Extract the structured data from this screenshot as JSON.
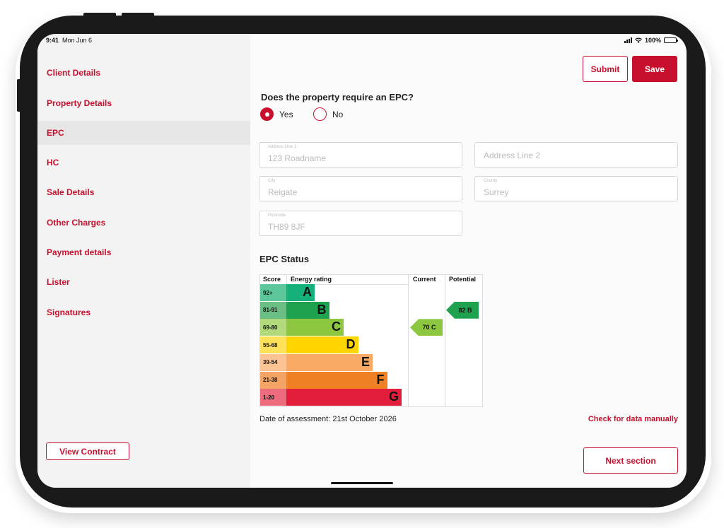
{
  "status_bar": {
    "time": "9:41",
    "date": "Mon Jun 6",
    "battery": "100%"
  },
  "sidebar": {
    "items": [
      {
        "label": "Client Details",
        "active": false
      },
      {
        "label": "Property Details",
        "active": false
      },
      {
        "label": "EPC",
        "active": true
      },
      {
        "label": "HC",
        "active": false
      },
      {
        "label": "Sale Details",
        "active": false
      },
      {
        "label": "Other Charges",
        "active": false
      },
      {
        "label": "Payment details",
        "active": false
      },
      {
        "label": "Lister",
        "active": false
      },
      {
        "label": "Signatures",
        "active": false
      }
    ],
    "view_contract_label": "View Contract"
  },
  "header": {
    "submit_label": "Submit",
    "save_label": "Save"
  },
  "epc_question": {
    "text": "Does the property require an EPC?",
    "options": [
      {
        "label": "Yes",
        "selected": true
      },
      {
        "label": "No",
        "selected": false
      }
    ]
  },
  "address": {
    "line1": {
      "label": "Address Line 1",
      "value": "123 Roadname"
    },
    "line2": {
      "placeholder": "Address Line 2"
    },
    "city": {
      "label": "City",
      "value": "Reigate"
    },
    "county": {
      "label": "County",
      "value": "Surrey"
    },
    "postcode": {
      "label": "Postcode",
      "value": "TH89 8JF"
    }
  },
  "epc_status": {
    "title": "EPC Status",
    "headers": {
      "score": "Score",
      "energy_rating": "Energy rating",
      "current": "Current",
      "potential": "Potential"
    },
    "bands": [
      {
        "score": "92+",
        "letter": "A",
        "color": "#16b07a",
        "score_bg": "#5dc79c"
      },
      {
        "score": "81-91",
        "letter": "B",
        "color": "#1ea24f",
        "score_bg": "#6bbf84"
      },
      {
        "score": "69-80",
        "letter": "C",
        "color": "#8dc63f",
        "score_bg": "#b2d97c"
      },
      {
        "score": "55-68",
        "letter": "D",
        "color": "#ffd500",
        "score_bg": "#ffe25a"
      },
      {
        "score": "39-54",
        "letter": "E",
        "color": "#fbaa65",
        "score_bg": "#fcc494"
      },
      {
        "score": "21-38",
        "letter": "F",
        "color": "#ef8023",
        "score_bg": "#f4a565"
      },
      {
        "score": "1-20",
        "letter": "G",
        "color": "#e31d3c",
        "score_bg": "#ec6b7d"
      }
    ],
    "current": {
      "label": "70 C",
      "band": "C",
      "color": "#8dc63f"
    },
    "potential": {
      "label": "82 B",
      "band": "B",
      "color": "#1ea24f"
    }
  },
  "date_of_assessment": "Date of assessment: 21st October 2026",
  "check_link_label": "Check for data manually",
  "next_section_label": "Next section",
  "colors": {
    "brand_red": "#c8102e"
  }
}
